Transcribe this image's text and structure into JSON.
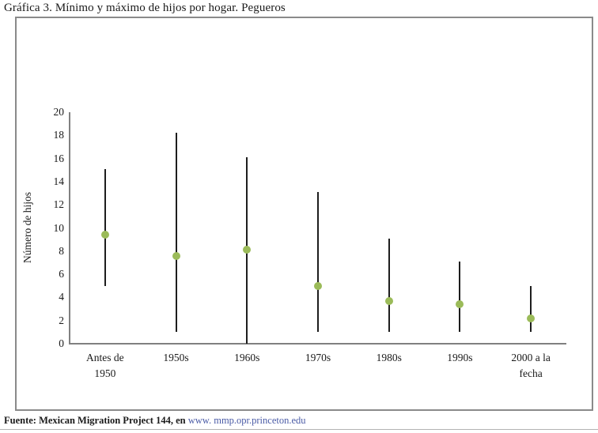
{
  "page": {
    "title": "Gráfica 3. Mínimo y máximo de hijos por hogar. Pegueros",
    "footer": {
      "source_prefix": "Fuente: Mexican Migration Project 144, en ",
      "source_link": "www. mmp.opr.princeton.edu"
    }
  },
  "chart_data": {
    "type": "scatter",
    "variant": "min-max range lines with mean marker (hi-lo chart)",
    "title": "Gráfica 3. Mínimo y máximo de hijos por hogar. Pegueros",
    "xlabel": "",
    "ylabel": "Número de hijos",
    "ylim": [
      0,
      20
    ],
    "ytick_step": 2,
    "grid": false,
    "legend": "none",
    "categories": [
      "Antes de 1950",
      "1950s",
      "1960s",
      "1970s",
      "1980s",
      "1990s",
      "2000 a la fecha"
    ],
    "label_lines": [
      [
        "Antes de",
        "1950"
      ],
      [
        "1950s"
      ],
      [
        "1960s"
      ],
      [
        "1970s"
      ],
      [
        "1980s"
      ],
      [
        "1990s"
      ],
      [
        "2000 a la",
        "fecha"
      ]
    ],
    "series": [
      {
        "name": "min",
        "values": [
          5,
          1,
          0,
          1,
          1,
          1,
          1
        ]
      },
      {
        "name": "max",
        "values": [
          15.1,
          18.2,
          16.1,
          13.1,
          9.1,
          7.1,
          5.0
        ]
      },
      {
        "name": "mean_point",
        "values": [
          9.4,
          7.6,
          8.1,
          5.0,
          3.7,
          3.4,
          2.2
        ]
      }
    ],
    "colors": {
      "marker": "#9bbb59",
      "range_line": "#1d1d1d",
      "axis": "#808080",
      "chart_border": "#8a8a8a",
      "text": "#1a1a1a",
      "link": "#4a5ba6",
      "bottom_rule": "#b3b3b3"
    }
  }
}
